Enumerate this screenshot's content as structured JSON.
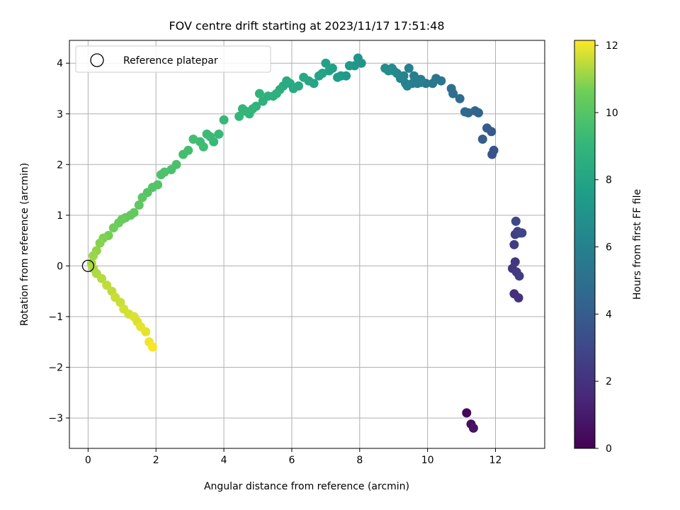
{
  "chart_data": {
    "type": "scatter",
    "title": "FOV centre drift starting at 2023/11/17 17:51:48",
    "xlabel": "Angular distance from reference (arcmin)",
    "ylabel": "Rotation from reference (arcmin)",
    "xlim": [
      -0.55,
      13.45
    ],
    "ylim": [
      -3.6,
      4.45
    ],
    "x_ticks": [
      0,
      2,
      4,
      6,
      8,
      10,
      12
    ],
    "y_ticks": [
      -3,
      -2,
      -1,
      0,
      1,
      2,
      3,
      4
    ],
    "grid": true,
    "legend": {
      "position": "top-left",
      "entries": [
        "Reference platepar"
      ]
    },
    "reference_point": {
      "x": 0,
      "y": 0
    },
    "colorbar": {
      "label": "Hours from first FF file",
      "range": [
        0,
        12.15
      ],
      "ticks": [
        0,
        2,
        4,
        6,
        8,
        10,
        12
      ],
      "colormap": "viridis"
    },
    "series": [
      {
        "points": [
          [
            11.15,
            -2.9,
            0.3
          ],
          [
            11.28,
            -3.12,
            0.5
          ],
          [
            11.35,
            -3.2,
            0.7
          ],
          [
            12.55,
            -0.55,
            1.9
          ],
          [
            12.68,
            -0.63,
            2.0
          ],
          [
            12.5,
            -0.05,
            2.1
          ],
          [
            12.58,
            0.08,
            2.2
          ],
          [
            12.62,
            -0.12,
            2.3
          ],
          [
            12.7,
            -0.2,
            2.4
          ],
          [
            12.55,
            0.42,
            2.5
          ],
          [
            12.58,
            0.62,
            2.6
          ],
          [
            12.65,
            0.68,
            2.7
          ],
          [
            12.72,
            0.65,
            2.8
          ],
          [
            12.78,
            0.65,
            2.9
          ],
          [
            12.6,
            0.88,
            3.0
          ],
          [
            11.9,
            2.2,
            3.5
          ],
          [
            11.95,
            2.28,
            3.6
          ],
          [
            11.88,
            2.65,
            3.8
          ],
          [
            11.75,
            2.72,
            3.9
          ],
          [
            11.62,
            2.5,
            4.0
          ],
          [
            11.5,
            3.02,
            4.3
          ],
          [
            11.4,
            3.06,
            4.4
          ],
          [
            11.2,
            3.02,
            4.5
          ],
          [
            11.1,
            3.04,
            4.6
          ],
          [
            10.95,
            3.3,
            4.8
          ],
          [
            10.7,
            3.5,
            5.0
          ],
          [
            10.75,
            3.4,
            5.1
          ],
          [
            10.4,
            3.65,
            5.3
          ],
          [
            10.25,
            3.7,
            5.4
          ],
          [
            10.15,
            3.6,
            5.5
          ],
          [
            9.95,
            3.6,
            5.6
          ],
          [
            9.8,
            3.62,
            5.7
          ],
          [
            9.7,
            3.6,
            5.8
          ],
          [
            9.55,
            3.6,
            5.9
          ],
          [
            9.4,
            3.55,
            6.0
          ],
          [
            9.35,
            3.6,
            6.1
          ],
          [
            9.3,
            3.75,
            6.2
          ],
          [
            9.2,
            3.7,
            6.2
          ],
          [
            9.1,
            3.8,
            6.3
          ],
          [
            9.0,
            3.85,
            6.4
          ],
          [
            8.95,
            3.9,
            6.5
          ],
          [
            8.85,
            3.85,
            6.6
          ],
          [
            8.75,
            3.9,
            6.7
          ],
          [
            9.45,
            3.9,
            6.0
          ],
          [
            9.6,
            3.75,
            5.9
          ],
          [
            9.8,
            3.68,
            5.8
          ],
          [
            8.05,
            4.0,
            7.0
          ],
          [
            7.95,
            4.1,
            7.1
          ],
          [
            7.85,
            3.95,
            7.2
          ],
          [
            7.7,
            3.95,
            7.3
          ],
          [
            7.6,
            3.75,
            7.4
          ],
          [
            7.45,
            3.75,
            7.5
          ],
          [
            7.35,
            3.72,
            7.6
          ],
          [
            7.2,
            3.9,
            7.7
          ],
          [
            7.1,
            3.85,
            7.8
          ],
          [
            7.0,
            4.0,
            7.8
          ],
          [
            6.9,
            3.8,
            7.9
          ],
          [
            6.8,
            3.75,
            8.0
          ],
          [
            6.65,
            3.6,
            8.0
          ],
          [
            6.5,
            3.65,
            8.1
          ],
          [
            6.35,
            3.72,
            8.2
          ],
          [
            6.2,
            3.55,
            8.2
          ],
          [
            6.05,
            3.5,
            8.3
          ],
          [
            5.95,
            3.6,
            8.3
          ],
          [
            5.85,
            3.65,
            8.4
          ],
          [
            5.75,
            3.55,
            8.4
          ],
          [
            5.65,
            3.48,
            8.5
          ],
          [
            5.55,
            3.4,
            8.6
          ],
          [
            5.45,
            3.35,
            8.6
          ],
          [
            5.3,
            3.35,
            8.7
          ],
          [
            5.15,
            3.25,
            8.7
          ],
          [
            5.05,
            3.4,
            8.8
          ],
          [
            4.95,
            3.15,
            8.8
          ],
          [
            4.85,
            3.1,
            8.9
          ],
          [
            4.75,
            3.0,
            8.9
          ],
          [
            4.65,
            3.05,
            9.0
          ],
          [
            4.55,
            3.1,
            9.0
          ],
          [
            4.45,
            2.95,
            9.1
          ],
          [
            4.0,
            2.88,
            9.1
          ],
          [
            3.85,
            2.6,
            9.2
          ],
          [
            3.7,
            2.45,
            9.2
          ],
          [
            3.6,
            2.55,
            9.3
          ],
          [
            3.5,
            2.6,
            9.3
          ],
          [
            3.4,
            2.35,
            9.4
          ],
          [
            3.3,
            2.45,
            9.4
          ],
          [
            3.1,
            2.5,
            9.5
          ],
          [
            2.95,
            2.28,
            9.5
          ],
          [
            2.8,
            2.2,
            9.6
          ],
          [
            2.6,
            2.0,
            9.7
          ],
          [
            2.45,
            1.9,
            9.7
          ],
          [
            2.25,
            1.85,
            9.8
          ],
          [
            2.15,
            1.8,
            9.8
          ],
          [
            2.05,
            1.6,
            9.9
          ],
          [
            1.9,
            1.55,
            10.0
          ],
          [
            1.75,
            1.45,
            10.0
          ],
          [
            1.6,
            1.35,
            10.1
          ],
          [
            1.5,
            1.2,
            10.2
          ],
          [
            1.35,
            1.05,
            10.3
          ],
          [
            1.25,
            1.0,
            10.3
          ],
          [
            1.1,
            0.95,
            10.4
          ],
          [
            1.0,
            0.92,
            10.5
          ],
          [
            0.9,
            0.85,
            10.5
          ],
          [
            0.75,
            0.75,
            10.6
          ],
          [
            0.6,
            0.6,
            10.7
          ],
          [
            0.45,
            0.55,
            10.8
          ],
          [
            0.35,
            0.45,
            10.9
          ],
          [
            0.25,
            0.3,
            11.0
          ],
          [
            0.15,
            0.2,
            11.1
          ],
          [
            0.1,
            0.05,
            11.2
          ],
          [
            0.15,
            -0.05,
            11.3
          ],
          [
            0.25,
            -0.15,
            11.3
          ],
          [
            0.4,
            -0.25,
            11.4
          ],
          [
            0.55,
            -0.38,
            11.5
          ],
          [
            0.7,
            -0.5,
            11.5
          ],
          [
            0.8,
            -0.62,
            11.6
          ],
          [
            0.95,
            -0.72,
            11.6
          ],
          [
            1.05,
            -0.85,
            11.7
          ],
          [
            1.2,
            -0.95,
            11.7
          ],
          [
            1.35,
            -1.0,
            11.8
          ],
          [
            1.45,
            -1.1,
            11.8
          ],
          [
            1.55,
            -1.2,
            11.9
          ],
          [
            1.7,
            -1.3,
            11.9
          ],
          [
            1.8,
            -1.5,
            12.0
          ],
          [
            1.9,
            -1.6,
            12.1
          ]
        ]
      }
    ]
  }
}
